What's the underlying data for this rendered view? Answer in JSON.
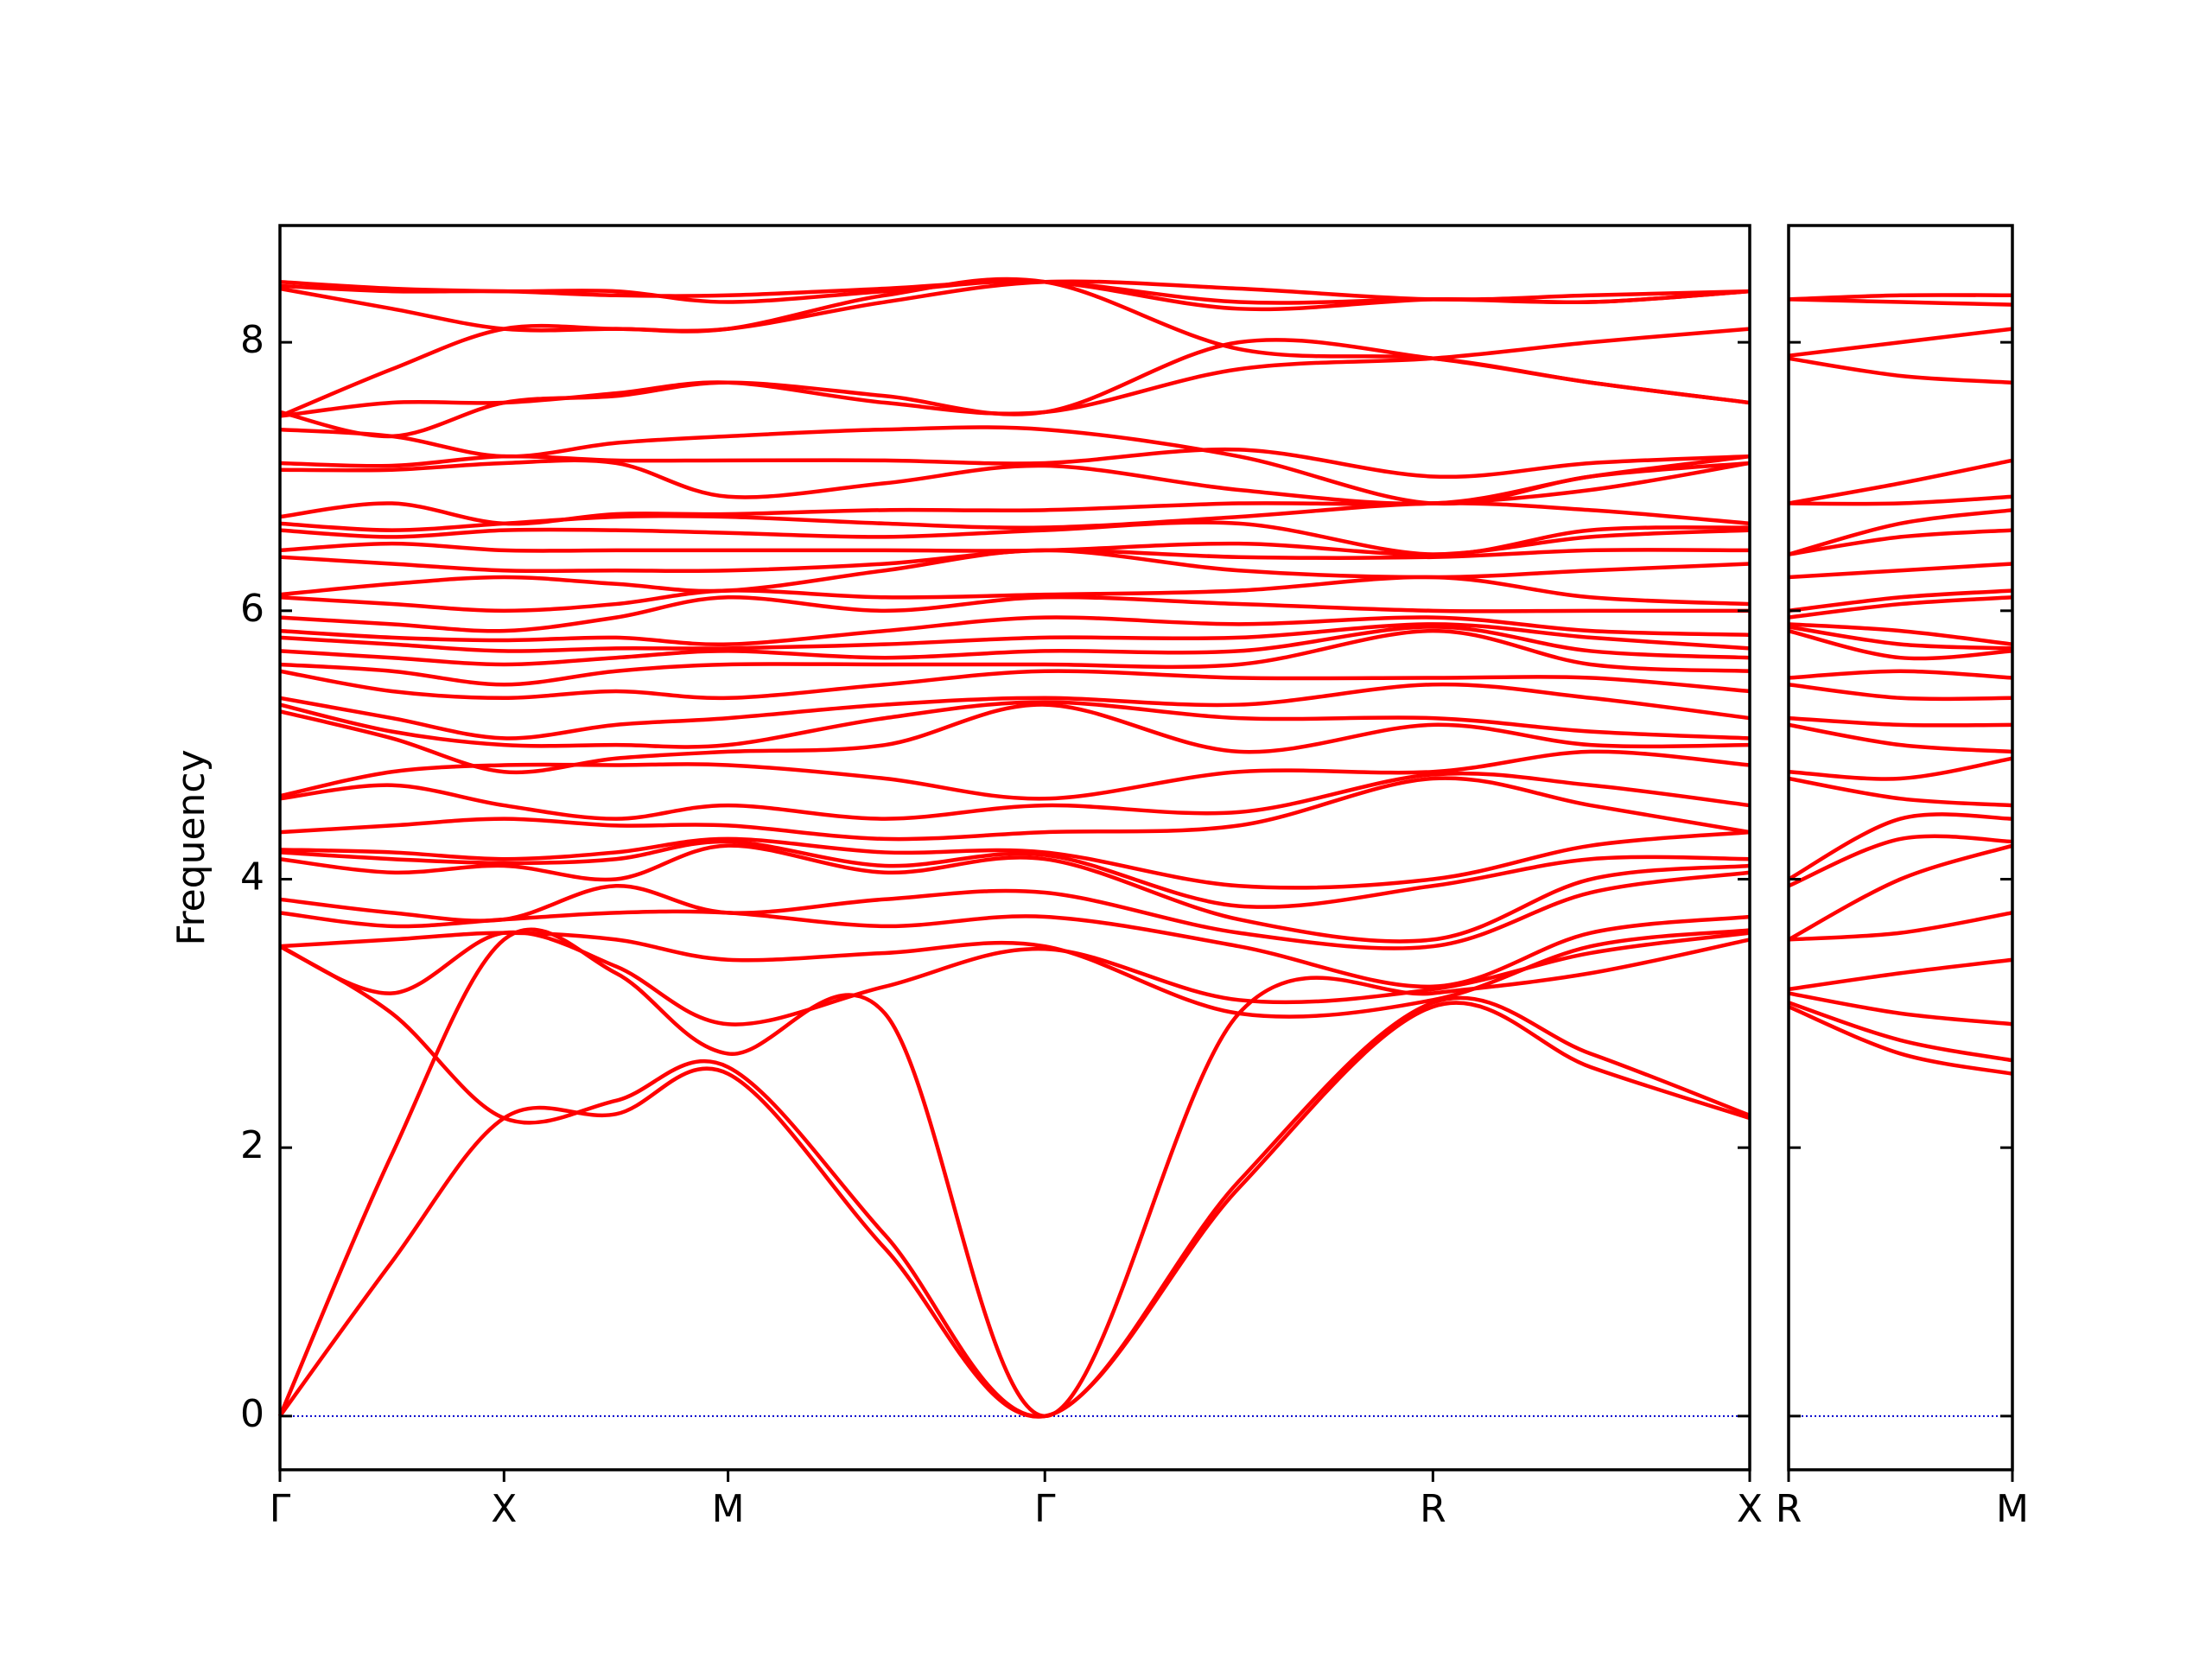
{
  "chart_data": [
    {
      "type": "line",
      "ylabel": "Frequency",
      "color": "#ff0000",
      "zero_line": true,
      "zero_line_color": "#0000cc",
      "show_ytick_labels": true,
      "xlim": [
        0,
        6.56
      ],
      "ylim": [
        -0.4,
        8.87
      ],
      "xticks": [
        {
          "value": 0,
          "label": "Γ"
        },
        {
          "value": 1,
          "label": "X"
        },
        {
          "value": 2,
          "label": "M"
        },
        {
          "value": 3.414,
          "label": "Γ"
        },
        {
          "value": 5.146,
          "label": "R"
        },
        {
          "value": 6.56,
          "label": "X"
        }
      ],
      "yticks": [
        0,
        2,
        4,
        6,
        8
      ],
      "x": [
        0,
        0.5,
        1,
        1.5,
        2,
        2.7,
        3.414,
        4.28,
        5.146,
        5.85,
        6.56
      ],
      "series": [
        {
          "values": [
            0,
            1.15,
            2.22,
            2.25,
            2.55,
            1.25,
            0,
            1.7,
            3.05,
            2.6,
            2.22
          ]
        },
        {
          "values": [
            3.5,
            3.0,
            2.22,
            2.35,
            2.6,
            1.35,
            0,
            1.75,
            3.08,
            2.7,
            2.24
          ]
        },
        {
          "values": [
            0,
            1.95,
            3.55,
            3.3,
            2.7,
            3.0,
            0,
            3.0,
            3.15,
            3.3,
            3.55
          ]
        },
        {
          "values": [
            3.5,
            3.15,
            3.6,
            3.35,
            2.92,
            3.2,
            3.48,
            3.1,
            3.18,
            3.45,
            3.6
          ]
        },
        {
          "values": [
            3.5,
            3.55,
            3.6,
            3.55,
            3.4,
            3.45,
            3.5,
            3.0,
            3.1,
            3.5,
            3.62
          ]
        },
        {
          "values": [
            3.75,
            3.65,
            3.7,
            3.75,
            3.75,
            3.65,
            3.72,
            3.5,
            3.2,
            3.6,
            3.72
          ]
        },
        {
          "values": [
            3.85,
            3.75,
            3.7,
            3.95,
            3.75,
            3.85,
            3.9,
            3.6,
            3.5,
            3.9,
            4.05
          ]
        },
        {
          "values": [
            4.15,
            4.05,
            4.1,
            4.0,
            4.25,
            4.05,
            4.15,
            3.7,
            3.55,
            4.0,
            4.1
          ]
        },
        {
          "values": [
            4.2,
            4.15,
            4.12,
            4.15,
            4.28,
            4.1,
            4.18,
            3.8,
            3.95,
            4.15,
            4.15
          ]
        },
        {
          "values": [
            4.22,
            4.2,
            4.15,
            4.2,
            4.3,
            4.2,
            4.2,
            3.95,
            4.0,
            4.25,
            4.35
          ]
        },
        {
          "values": [
            4.35,
            4.4,
            4.45,
            4.4,
            4.4,
            4.3,
            4.35,
            4.4,
            4.75,
            4.55,
            4.35
          ]
        },
        {
          "values": [
            4.6,
            4.7,
            4.55,
            4.45,
            4.55,
            4.45,
            4.55,
            4.5,
            4.78,
            4.7,
            4.55
          ]
        },
        {
          "values": [
            4.62,
            4.8,
            4.85,
            4.85,
            4.85,
            4.75,
            4.6,
            4.8,
            4.8,
            4.95,
            4.85
          ]
        },
        {
          "values": [
            5.25,
            5.05,
            4.8,
            4.9,
            4.95,
            5.0,
            5.3,
            4.95,
            5.15,
            5.0,
            5.0
          ]
        },
        {
          "values": [
            5.3,
            5.1,
            5.0,
            5.0,
            5.0,
            5.2,
            5.32,
            5.2,
            5.2,
            5.1,
            5.05
          ]
        },
        {
          "values": [
            5.35,
            5.2,
            5.05,
            5.15,
            5.2,
            5.3,
            5.35,
            5.3,
            5.45,
            5.35,
            5.2
          ]
        },
        {
          "values": [
            5.55,
            5.4,
            5.35,
            5.4,
            5.35,
            5.45,
            5.55,
            5.5,
            5.5,
            5.5,
            5.4
          ]
        },
        {
          "values": [
            5.6,
            5.55,
            5.45,
            5.55,
            5.6,
            5.6,
            5.6,
            5.6,
            5.85,
            5.6,
            5.55
          ]
        },
        {
          "values": [
            5.7,
            5.65,
            5.6,
            5.65,
            5.7,
            5.65,
            5.7,
            5.7,
            5.88,
            5.7,
            5.65
          ]
        },
        {
          "values": [
            5.8,
            5.75,
            5.7,
            5.72,
            5.72,
            5.75,
            5.8,
            5.8,
            5.9,
            5.8,
            5.72
          ]
        },
        {
          "values": [
            5.85,
            5.8,
            5.78,
            5.8,
            5.75,
            5.85,
            5.95,
            5.9,
            5.95,
            5.85,
            5.82
          ]
        },
        {
          "values": [
            5.95,
            5.9,
            5.85,
            5.95,
            6.1,
            6.0,
            6.1,
            6.05,
            6.0,
            6.0,
            6.0
          ]
        },
        {
          "values": [
            6.1,
            6.05,
            6.0,
            6.05,
            6.15,
            6.1,
            6.12,
            6.15,
            6.25,
            6.1,
            6.05
          ]
        },
        {
          "values": [
            6.12,
            6.2,
            6.25,
            6.2,
            6.15,
            6.3,
            6.45,
            6.3,
            6.25,
            6.3,
            6.35
          ]
        },
        {
          "values": [
            6.4,
            6.35,
            6.3,
            6.3,
            6.3,
            6.35,
            6.45,
            6.4,
            6.4,
            6.45,
            6.45
          ]
        },
        {
          "values": [
            6.45,
            6.5,
            6.45,
            6.45,
            6.45,
            6.45,
            6.45,
            6.5,
            6.42,
            6.55,
            6.6
          ]
        },
        {
          "values": [
            6.6,
            6.55,
            6.6,
            6.6,
            6.58,
            6.55,
            6.6,
            6.65,
            6.42,
            6.6,
            6.62
          ]
        },
        {
          "values": [
            6.65,
            6.6,
            6.65,
            6.7,
            6.7,
            6.65,
            6.62,
            6.7,
            6.8,
            6.75,
            6.65
          ]
        },
        {
          "values": [
            6.7,
            6.8,
            6.65,
            6.72,
            6.72,
            6.75,
            6.75,
            6.8,
            6.8,
            6.9,
            7.1
          ]
        },
        {
          "values": [
            7.05,
            7.05,
            7.1,
            7.1,
            6.85,
            6.95,
            7.08,
            6.9,
            6.8,
            7.0,
            7.15
          ]
        },
        {
          "values": [
            7.1,
            7.08,
            7.15,
            7.12,
            7.12,
            7.12,
            7.1,
            7.2,
            7.0,
            7.1,
            7.15
          ]
        },
        {
          "values": [
            7.35,
            7.3,
            7.15,
            7.25,
            7.3,
            7.35,
            7.35,
            7.15,
            6.8,
            7.0,
            7.1
          ]
        },
        {
          "values": [
            7.45,
            7.55,
            7.55,
            7.62,
            7.7,
            7.55,
            7.48,
            7.8,
            7.88,
            8.0,
            8.1
          ]
        },
        {
          "values": [
            7.48,
            7.3,
            7.55,
            7.6,
            7.7,
            7.6,
            7.48,
            8.0,
            7.88,
            7.7,
            7.55
          ]
        },
        {
          "values": [
            7.45,
            7.8,
            8.1,
            8.1,
            8.1,
            8.35,
            8.45,
            7.95,
            7.88,
            7.7,
            7.55
          ]
        },
        {
          "values": [
            8.4,
            8.25,
            8.1,
            8.1,
            8.1,
            8.3,
            8.45,
            8.4,
            8.32,
            8.35,
            8.38
          ]
        },
        {
          "values": [
            8.42,
            8.38,
            8.38,
            8.35,
            8.35,
            8.4,
            8.45,
            8.3,
            8.32,
            8.3,
            8.38
          ]
        },
        {
          "values": [
            8.45,
            8.4,
            8.38,
            8.38,
            8.3,
            8.38,
            8.45,
            8.25,
            8.32,
            8.3,
            8.38
          ]
        }
      ]
    },
    {
      "type": "line",
      "color": "#ff0000",
      "zero_line": true,
      "zero_line_color": "#0000cc",
      "show_ytick_labels": false,
      "xlim": [
        0,
        1
      ],
      "ylim": [
        -0.4,
        8.87
      ],
      "xticks": [
        {
          "value": 0,
          "label": "R"
        },
        {
          "value": 1,
          "label": "M"
        }
      ],
      "yticks": [
        0,
        2,
        4,
        6,
        8
      ],
      "x": [
        0,
        0.5,
        1
      ],
      "series": [
        {
          "values": [
            3.05,
            2.7,
            2.55
          ]
        },
        {
          "values": [
            3.08,
            2.8,
            2.65
          ]
        },
        {
          "values": [
            3.15,
            3.0,
            2.92
          ]
        },
        {
          "values": [
            3.18,
            3.3,
            3.4
          ]
        },
        {
          "values": [
            3.55,
            3.6,
            3.75
          ]
        },
        {
          "values": [
            3.55,
            4.0,
            4.25
          ]
        },
        {
          "values": [
            3.95,
            4.3,
            4.28
          ]
        },
        {
          "values": [
            4.0,
            4.45,
            4.45
          ]
        },
        {
          "values": [
            4.75,
            4.6,
            4.55
          ]
        },
        {
          "values": [
            4.8,
            4.75,
            4.9
          ]
        },
        {
          "values": [
            5.15,
            5.0,
            4.95
          ]
        },
        {
          "values": [
            5.2,
            5.15,
            5.15
          ]
        },
        {
          "values": [
            5.45,
            5.35,
            5.35
          ]
        },
        {
          "values": [
            5.5,
            5.55,
            5.5
          ]
        },
        {
          "values": [
            5.85,
            5.65,
            5.7
          ]
        },
        {
          "values": [
            5.88,
            5.75,
            5.72
          ]
        },
        {
          "values": [
            5.9,
            5.85,
            5.75
          ]
        },
        {
          "values": [
            5.95,
            6.05,
            6.1
          ]
        },
        {
          "values": [
            6.0,
            6.1,
            6.15
          ]
        },
        {
          "values": [
            6.25,
            6.3,
            6.35
          ]
        },
        {
          "values": [
            6.42,
            6.55,
            6.6
          ]
        },
        {
          "values": [
            6.42,
            6.65,
            6.75
          ]
        },
        {
          "values": [
            6.8,
            6.8,
            6.85
          ]
        },
        {
          "values": [
            6.8,
            6.95,
            7.12
          ]
        },
        {
          "values": [
            7.88,
            7.75,
            7.7
          ]
        },
        {
          "values": [
            7.9,
            8.0,
            8.1
          ]
        },
        {
          "values": [
            8.32,
            8.3,
            8.28
          ]
        },
        {
          "values": [
            8.32,
            8.35,
            8.35
          ]
        }
      ]
    }
  ]
}
